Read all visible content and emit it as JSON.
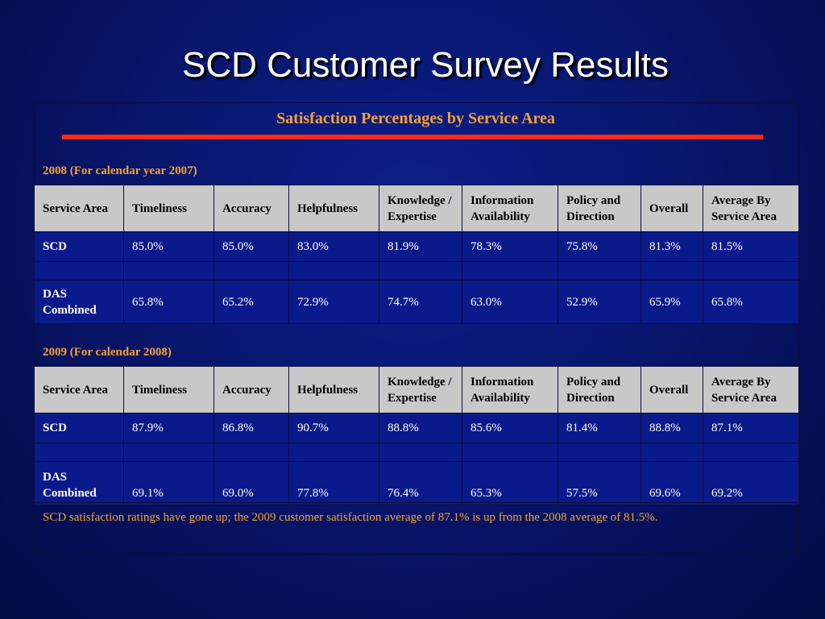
{
  "title": "SCD Customer Survey Results",
  "subtitle": "Satisfaction Percentages by Service Area",
  "headers": [
    "Service Area",
    "Timeliness",
    "Accuracy",
    "Helpfulness",
    "Knowledge / Expertise",
    "Information Availability",
    "Policy and Direction",
    "Overall",
    "Average By Service Area"
  ],
  "section_2008": {
    "label": "2008 (For calendar year 2007)",
    "scd": [
      "SCD",
      "85.0%",
      "85.0%",
      "83.0%",
      "81.9%",
      "78.3%",
      "75.8%",
      "81.3%",
      "81.5%"
    ],
    "das": [
      "DAS Combined",
      "65.8%",
      "65.2%",
      "72.9%",
      "74.7%",
      "63.0%",
      "52.9%",
      "65.9%",
      "65.8%"
    ]
  },
  "section_2009": {
    "label": "2009 (For calendar 2008)",
    "scd": [
      "SCD",
      "87.9%",
      "86.8%",
      "90.7%",
      "88.8%",
      "85.6%",
      "81.4%",
      "88.8%",
      "87.1%"
    ],
    "das": [
      "DAS Combined",
      "69.1%",
      "69.0%",
      "77.8%",
      "76.4%",
      "65.3%",
      "57.5%",
      "69.6%",
      "69.2%"
    ]
  },
  "note": "SCD satisfaction ratings have gone up; the 2009 customer satisfaction average of 87.1% is up from the 2008 average of 81.5%."
}
